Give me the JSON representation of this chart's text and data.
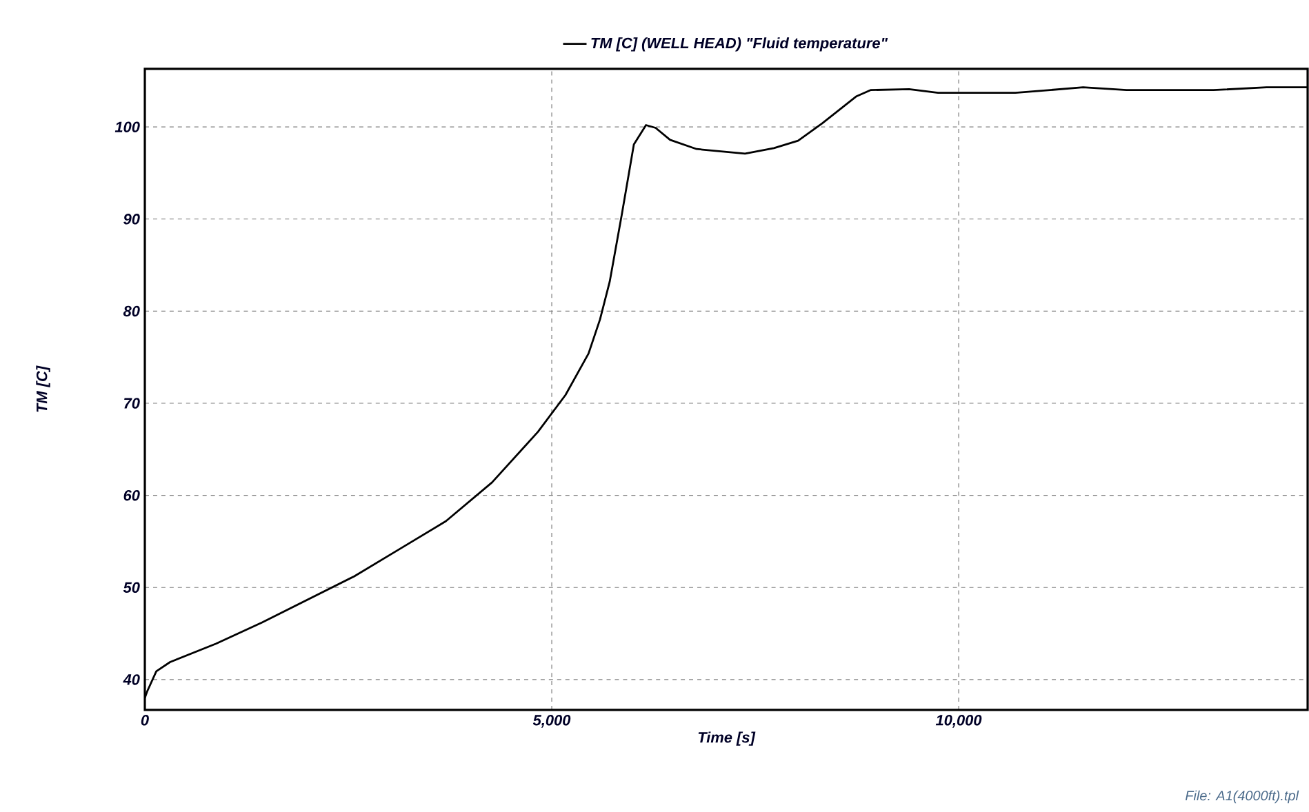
{
  "chart_data": {
    "type": "line",
    "xlabel": "Time [s]",
    "ylabel": "TM [C]",
    "annotations": [
      "File: A1(4000ft).tpl"
    ],
    "x": [
      0,
      28,
      141,
      310,
      876,
      1441,
      2006,
      2571,
      3136,
      3700,
      4266,
      4831,
      5169,
      5452,
      5593,
      5712,
      5861,
      6009,
      6158,
      6276,
      6454,
      6780,
      7375,
      7730,
      8027,
      8324,
      8739,
      8917,
      9391,
      9747,
      10696,
      11529,
      12063,
      13131,
      13783,
      14288
    ],
    "series": [
      {
        "name": "TM [C] (WELL HEAD) \"Fluid temperature\"",
        "color": "#000000",
        "values": [
          38.0,
          38.7,
          40.9,
          41.9,
          43.9,
          46.2,
          48.7,
          51.2,
          54.2,
          57.2,
          61.4,
          66.9,
          70.9,
          75.4,
          79.1,
          83.2,
          90.5,
          98.1,
          100.2,
          99.9,
          98.6,
          97.6,
          97.1,
          97.7,
          98.5,
          100.4,
          103.3,
          104.0,
          104.1,
          103.7,
          103.7,
          104.3,
          104.0,
          104.0,
          104.3,
          104.3
        ]
      }
    ],
    "xlim": [
      0,
      14288
    ],
    "ylim": [
      36.7,
      106.3
    ],
    "xticks": [
      {
        "value": 0,
        "label": "0"
      },
      {
        "value": 5000,
        "label": "5,000"
      },
      {
        "value": 10000,
        "label": "10,000"
      }
    ],
    "yticks": [
      40,
      50,
      60,
      70,
      80,
      90,
      100
    ],
    "grid": true,
    "legend": "top",
    "marker": "none",
    "line_style": "solid"
  }
}
